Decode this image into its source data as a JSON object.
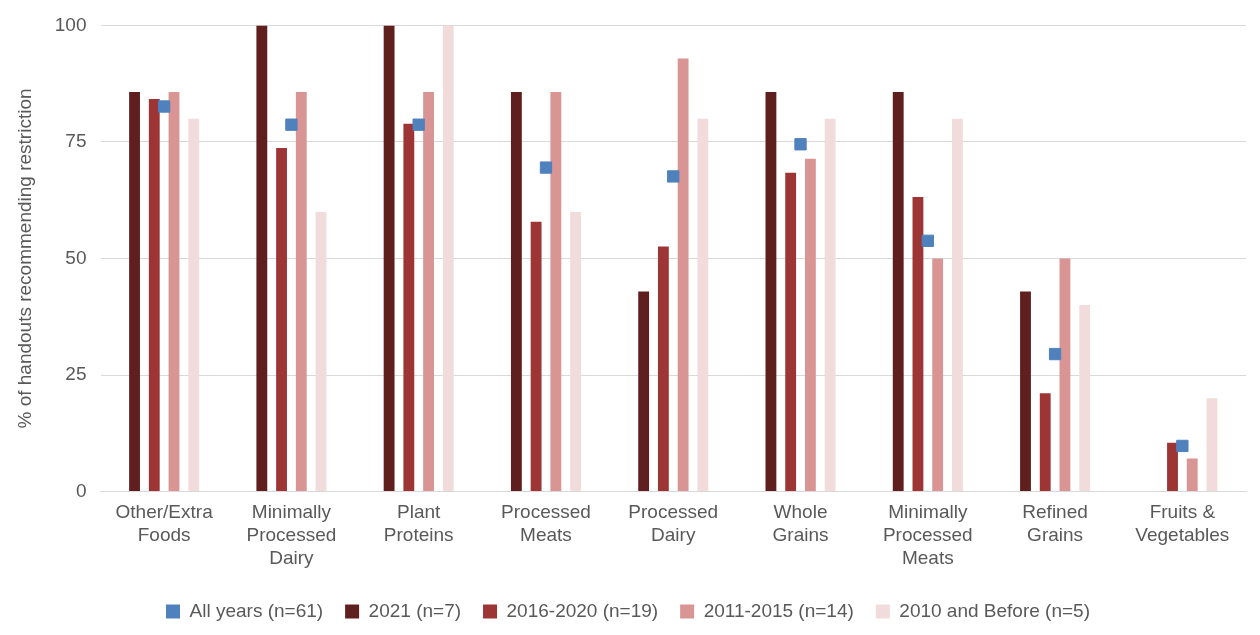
{
  "chart_data": {
    "type": "bar",
    "ylabel": "% of handouts recommending restriction",
    "categories": [
      "Other/Extra Foods",
      "Minimally Processed Dairy",
      "Plant Proteins",
      "Processed Meats",
      "Processed Dairy",
      "Whole Grains",
      "Minimally Processed Meats",
      "Refined Grains",
      "Fruits & Vegetables"
    ],
    "series": [
      {
        "name": "All years (n=61)",
        "type": "scatter",
        "marker": "square",
        "color": "#4f81bd",
        "values": [
          82.6,
          78.7,
          78.7,
          69.5,
          67.6,
          74.5,
          53.8,
          29.5,
          9.8
        ]
      },
      {
        "name": "2021 (n=7)",
        "color": "#5f1f1f",
        "values": [
          85.7,
          100,
          100,
          85.7,
          42.9,
          85.7,
          85.7,
          42.9,
          0
        ]
      },
      {
        "name": "2016-2020 (n=19)",
        "color": "#9e3535",
        "values": [
          84.2,
          73.7,
          78.9,
          57.9,
          52.6,
          68.4,
          63.2,
          21.1,
          10.5
        ]
      },
      {
        "name": "2011-2015 (n=14)",
        "color": "#d99594",
        "values": [
          85.7,
          85.7,
          85.7,
          85.7,
          92.9,
          71.4,
          50,
          50,
          7.1
        ]
      },
      {
        "name": "2010 and Before (n=5)",
        "color": "#f2dcdb",
        "values": [
          80,
          60,
          100,
          60,
          80,
          80,
          80,
          40,
          20
        ]
      }
    ],
    "ylim": [
      0,
      100
    ],
    "yticks": [
      0,
      25,
      50,
      75,
      100
    ],
    "grid": "y",
    "legend": "bottom"
  }
}
